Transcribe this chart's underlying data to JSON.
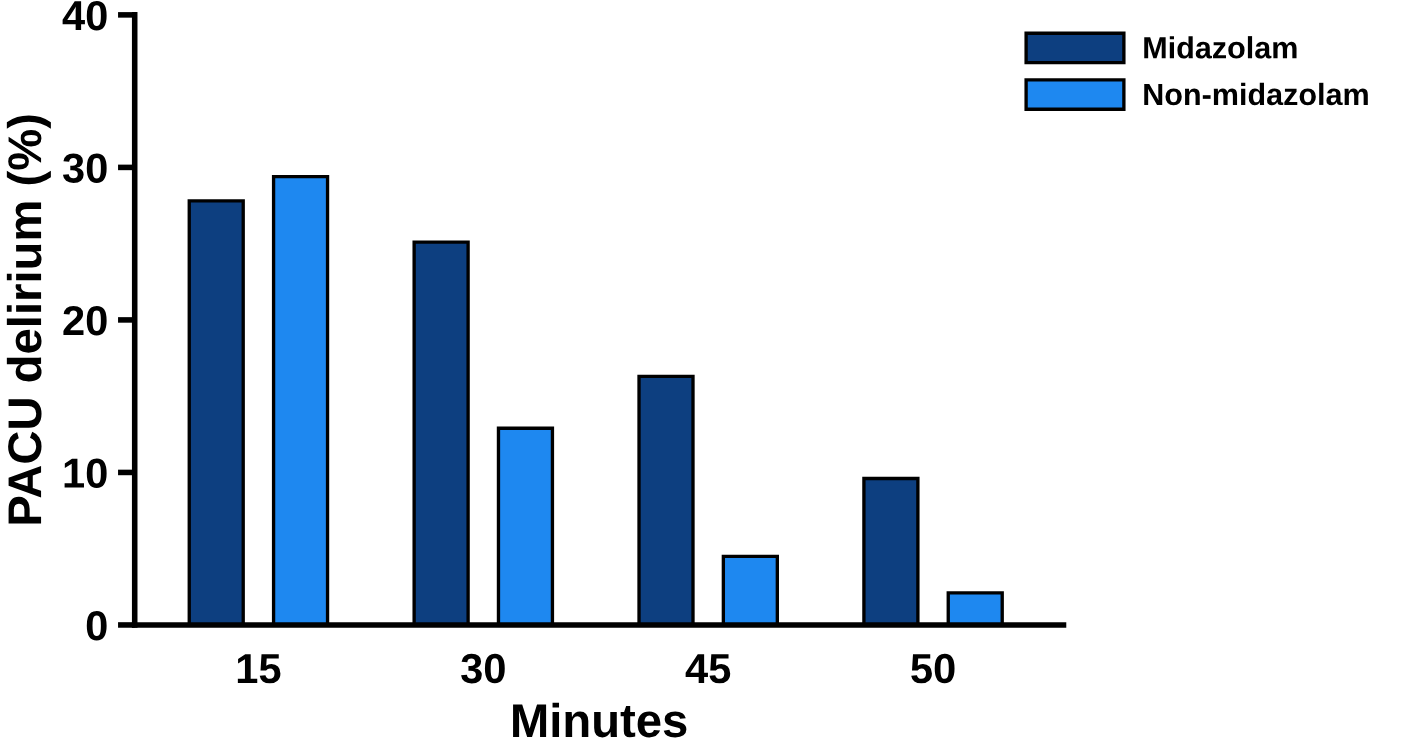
{
  "chart_data": {
    "type": "bar",
    "xlabel": "Minutes",
    "ylabel": "PACU delirium (%)",
    "categories": [
      "15",
      "30",
      "45",
      "50"
    ],
    "series": [
      {
        "name": "Midazolam",
        "color": "#0d3f80",
        "values": [
          27.8,
          25.1,
          16.3,
          9.6
        ]
      },
      {
        "name": "Non-midazolam",
        "color": "#1e88f0",
        "values": [
          29.4,
          12.9,
          4.5,
          2.1
        ]
      }
    ],
    "ylim": [
      0,
      40
    ],
    "yticks": [
      0,
      10,
      20,
      30,
      40
    ],
    "grid": false,
    "legend": "top right"
  }
}
